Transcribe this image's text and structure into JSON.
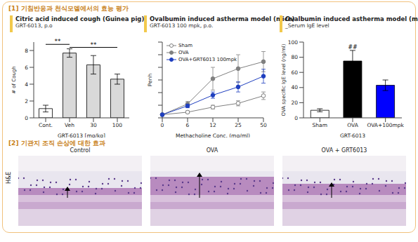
{
  "title": "[1] 기침반응과 천식모델에서의 효능 평가",
  "chart_data": [
    {
      "type": "bar",
      "title": "Citric acid induced cough (Guinea pig)",
      "subtitle": "GRT-6013, p.o",
      "categories": [
        "Cont.",
        "Veh",
        "30",
        "100"
      ],
      "values": [
        1.1,
        7.7,
        6.3,
        4.6
      ],
      "errors": [
        0.4,
        0.5,
        1.1,
        0.6
      ],
      "colors": [
        "#ffffff",
        "#d9d9d9",
        "#d9d9d9",
        "#d9d9d9"
      ],
      "xlabel": "GRT-6013 [mg/kg]",
      "ylabel": "# of Cough",
      "ylim": [
        0,
        9
      ],
      "yticks": [
        0,
        2,
        4,
        6,
        8
      ],
      "annotations": [
        {
          "text": "**",
          "between": [
            "Cont.",
            "Veh"
          ]
        },
        {
          "text": "**",
          "between": [
            "Veh",
            "100"
          ]
        }
      ]
    },
    {
      "type": "line",
      "title": "Ovalbumin induced astherma model (mice)",
      "subtitle": "GRT-6013 100 mpk, p.o.",
      "categories": [
        "0",
        "6",
        "12",
        "25",
        "50"
      ],
      "xlabel": "Methacholine Conc. (mg/ml)",
      "ylabel": "Penh",
      "ylim": [
        0,
        12
      ],
      "yticks": [
        0,
        2,
        4,
        6,
        8,
        10,
        12
      ],
      "tick_labels": "x",
      "legend": "upper left",
      "series": [
        {
          "name": "Sham",
          "color": "#808080",
          "marker": "open_circle",
          "values": [
            0.5,
            0.9,
            1.7,
            2.3,
            3.5
          ],
          "errors": [
            0.1,
            0.2,
            0.3,
            0.4,
            0.6
          ]
        },
        {
          "name": "OVA",
          "color": "#808080",
          "marker": "circle",
          "values": [
            0.5,
            2.2,
            6.2,
            7.8,
            8.9
          ],
          "errors": [
            0.1,
            0.4,
            1.8,
            2.2,
            1.6
          ]
        },
        {
          "name": "OVA+GRT6013 100mpk",
          "color": "#1f3fbf",
          "marker": "circle",
          "values": [
            0.5,
            1.9,
            3.6,
            4.9,
            6.6
          ],
          "errors": [
            0.1,
            0.3,
            0.5,
            0.8,
            1.1
          ]
        }
      ]
    },
    {
      "type": "bar",
      "title": "Ovalbumin induced astherma model (mice)",
      "subtitle": "_Serum IgE level",
      "categories": [
        "Sham",
        "OVA",
        "OVA+100mpk"
      ],
      "values": [
        10,
        75,
        43
      ],
      "errors": [
        2,
        14,
        7
      ],
      "colors": [
        "#ffffff",
        "#000000",
        "#0000ff"
      ],
      "xlabel": "GRT-6013",
      "ylabel": "OVA specific IgE level (ng/ml)",
      "ylim": [
        0,
        100
      ],
      "yticks": [
        0,
        20,
        40,
        60,
        80,
        100
      ],
      "annotations": [
        {
          "text": "##",
          "at": "OVA"
        }
      ]
    }
  ],
  "histology": {
    "title": "[2] 기관지 조직 손상에 대한 효과",
    "stain": "H&E",
    "panels": [
      "Control",
      "OVA",
      "OVA + GRT6013"
    ]
  }
}
